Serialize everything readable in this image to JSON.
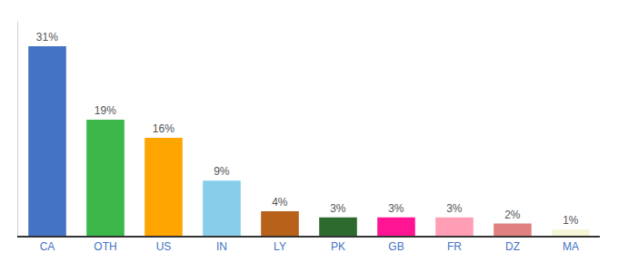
{
  "chart_data": {
    "type": "bar",
    "categories": [
      "CA",
      "OTH",
      "US",
      "IN",
      "LY",
      "PK",
      "GB",
      "FR",
      "DZ",
      "MA"
    ],
    "values": [
      31,
      19,
      16,
      9,
      4,
      3,
      3,
      3,
      2,
      1
    ],
    "value_labels": [
      "31%",
      "19%",
      "16%",
      "9%",
      "4%",
      "3%",
      "3%",
      "3%",
      "2%",
      "1%"
    ],
    "colors": [
      "#4472c4",
      "#3cb84a",
      "#ffa500",
      "#87ceeb",
      "#b8611a",
      "#2d6a2d",
      "#ff1493",
      "#ff9eb5",
      "#e08080",
      "#f5f5d8"
    ],
    "ylim": [
      0,
      35
    ],
    "data_labels": true,
    "tick_labels": "x",
    "grid": false
  }
}
